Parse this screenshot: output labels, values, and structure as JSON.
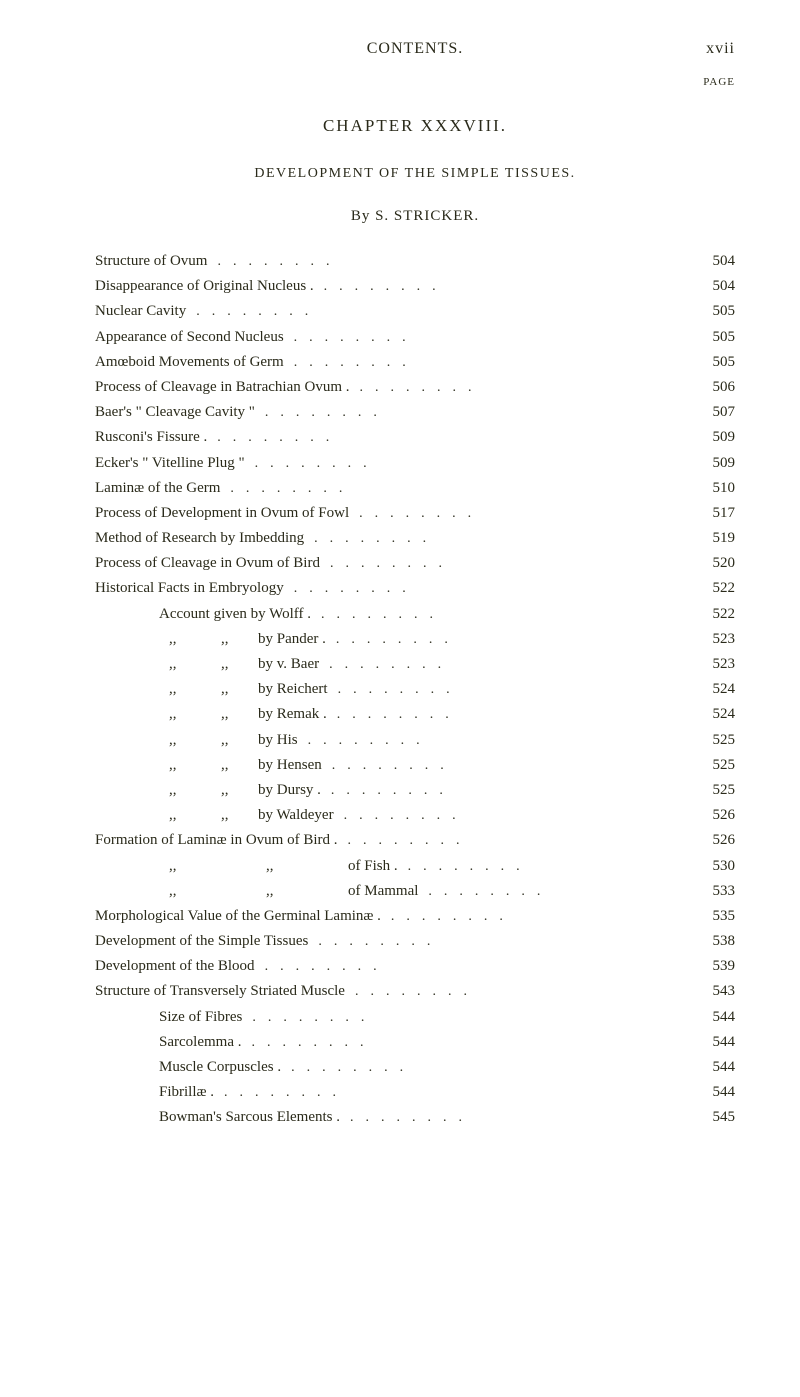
{
  "runningHeader": {
    "left": "CONTENTS.",
    "right": "xvii"
  },
  "pageLabel": "PAGE",
  "chapterTitle": "CHAPTER XXXVIII.",
  "sectionTitle": "DEVELOPMENT OF THE SIMPLE TISSUES.",
  "authorLine": {
    "prefix": "By ",
    "author": "S. STRICKER."
  },
  "leaderDots": "........",
  "entries": [
    {
      "label": "Structure of Ovum",
      "page": "504",
      "indent": 0
    },
    {
      "label": "Disappearance of Original Nucleus .",
      "page": "504",
      "indent": 0
    },
    {
      "label": "Nuclear Cavity",
      "page": "505",
      "indent": 0
    },
    {
      "label": "Appearance of Second Nucleus",
      "page": "505",
      "indent": 0
    },
    {
      "label": "Amœboid Movements of Germ",
      "page": "505",
      "indent": 0
    },
    {
      "label": "Process of Cleavage in Batrachian Ovum .",
      "page": "506",
      "indent": 0
    },
    {
      "label": "Baer's \" Cleavage Cavity \"",
      "page": "507",
      "indent": 0
    },
    {
      "label": "Rusconi's Fissure .",
      "page": "509",
      "indent": 0
    },
    {
      "label": "Ecker's \" Vitelline Plug \"",
      "page": "509",
      "indent": 0
    },
    {
      "label": "Laminæ of the Germ",
      "page": "510",
      "indent": 0
    },
    {
      "label": "Process of Development in Ovum of Fowl",
      "page": "517",
      "indent": 0
    },
    {
      "label": "Method of Research by Imbedding",
      "page": "519",
      "indent": 0
    },
    {
      "label": "Process of Cleavage in Ovum of Bird",
      "page": "520",
      "indent": 0
    },
    {
      "label": "Historical Facts in Embryology",
      "page": "522",
      "indent": 0
    },
    {
      "label": "Account given by Wolff .",
      "page": "522",
      "indent": 1
    },
    {
      "label": "by Pander .",
      "page": "523",
      "indent": 2,
      "ditto": true
    },
    {
      "label": "by v. Baer",
      "page": "523",
      "indent": 2,
      "ditto": true
    },
    {
      "label": "by Reichert",
      "page": "524",
      "indent": 2,
      "ditto": true
    },
    {
      "label": "by Remak .",
      "page": "524",
      "indent": 2,
      "ditto": true
    },
    {
      "label": "by His",
      "page": "525",
      "indent": 2,
      "ditto": true
    },
    {
      "label": "by Hensen",
      "page": "525",
      "indent": 2,
      "ditto": true
    },
    {
      "label": "by Dursy .",
      "page": "525",
      "indent": 2,
      "ditto": true
    },
    {
      "label": "by Waldeyer",
      "page": "526",
      "indent": 2,
      "ditto": true
    },
    {
      "label": "Formation of Laminæ in Ovum of Bird .",
      "page": "526",
      "indent": 0
    },
    {
      "label": "of Fish .",
      "page": "530",
      "indent": 2,
      "dittoWide": true
    },
    {
      "label": "of Mammal",
      "page": "533",
      "indent": 2,
      "dittoWide": true
    },
    {
      "label": "Morphological Value of the Germinal Laminæ .",
      "page": "535",
      "indent": 0
    },
    {
      "label": "Development of the Simple Tissues",
      "page": "538",
      "indent": 0
    },
    {
      "label": "Development of the Blood",
      "page": "539",
      "indent": 0
    },
    {
      "label": "Structure of Transversely Striated Muscle",
      "page": "543",
      "indent": 0
    },
    {
      "label": "Size of Fibres",
      "page": "544",
      "indent": 1
    },
    {
      "label": "Sarcolemma .",
      "page": "544",
      "indent": 1
    },
    {
      "label": "Muscle Corpuscles .",
      "page": "544",
      "indent": 1
    },
    {
      "label": "Fibrillæ .",
      "page": "544",
      "indent": 1
    },
    {
      "label": "Bowman's Sarcous Elements .",
      "page": "545",
      "indent": 1
    }
  ]
}
